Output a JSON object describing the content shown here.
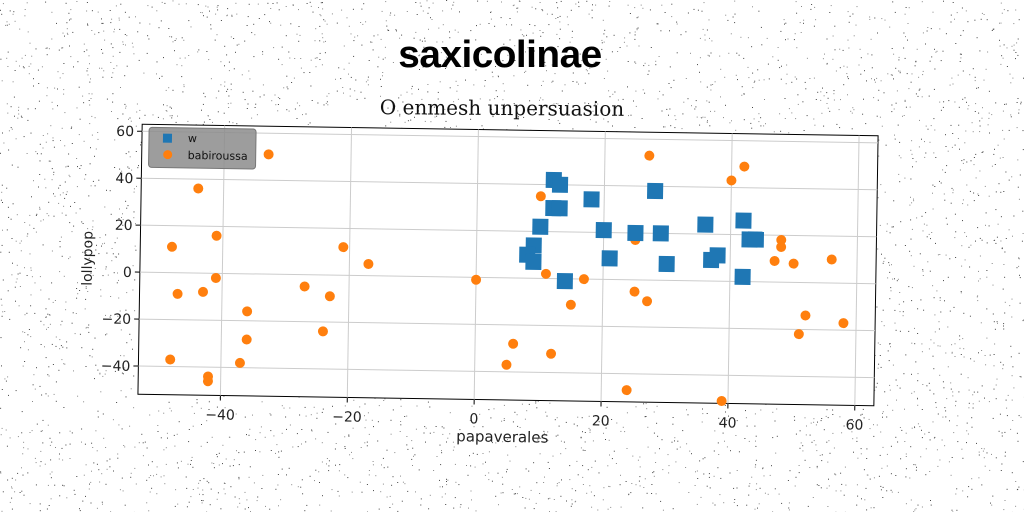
{
  "chart_data": {
    "type": "scatter",
    "title": "saxicolinae",
    "subtitle": "O enmesh unpersuasion",
    "xlabel": "papaverales",
    "ylabel": "lollypop",
    "xlim": [
      -53,
      63
    ],
    "ylim": [
      -52,
      63
    ],
    "xticks": [
      -40,
      -20,
      0,
      20,
      40,
      60
    ],
    "yticks": [
      -40,
      -20,
      0,
      20,
      40,
      60
    ],
    "grid": true,
    "legend_position": "top-left",
    "series": [
      {
        "name": "w",
        "marker": "square",
        "color": "#1f77b4",
        "points": [
          [
            12,
            42
          ],
          [
            13,
            40
          ],
          [
            12,
            30
          ],
          [
            13,
            30
          ],
          [
            10,
            22
          ],
          [
            9,
            14
          ],
          [
            8,
            10
          ],
          [
            9,
            7
          ],
          [
            14,
            -1
          ],
          [
            18,
            34
          ],
          [
            20,
            21
          ],
          [
            21,
            9
          ],
          [
            25,
            20
          ],
          [
            28,
            38
          ],
          [
            29,
            20
          ],
          [
            30,
            7
          ],
          [
            36,
            24
          ],
          [
            37,
            9
          ],
          [
            38,
            11
          ],
          [
            42,
            26
          ],
          [
            43,
            18
          ],
          [
            44,
            18
          ],
          [
            42,
            2
          ]
        ]
      },
      {
        "name": "babiroussa",
        "marker": "circle",
        "color": "#ff7f0e",
        "points": [
          [
            -48,
            11
          ],
          [
            -47,
            -9
          ],
          [
            -44,
            36
          ],
          [
            -43,
            -8
          ],
          [
            -41,
            16
          ],
          [
            -41,
            -2
          ],
          [
            -42,
            -44
          ],
          [
            -42,
            -46
          ],
          [
            -36,
            -16
          ],
          [
            -36,
            -28
          ],
          [
            -37,
            -38
          ],
          [
            -33,
            51
          ],
          [
            -27,
            -5
          ],
          [
            -24,
            -24
          ],
          [
            -23,
            -9
          ],
          [
            -21,
            12
          ],
          [
            -17,
            5
          ],
          [
            -48,
            -37
          ],
          [
            0,
            -1
          ],
          [
            5,
            -37
          ],
          [
            6,
            -28
          ],
          [
            10,
            35
          ],
          [
            11,
            2
          ],
          [
            12,
            -32
          ],
          [
            12,
            41
          ],
          [
            15,
            -11
          ],
          [
            17,
            0
          ],
          [
            24,
            -47
          ],
          [
            25,
            17
          ],
          [
            25,
            -5
          ],
          [
            27,
            53
          ],
          [
            27,
            -9
          ],
          [
            40,
            43
          ],
          [
            42,
            49
          ],
          [
            39,
            -51
          ],
          [
            47,
            9
          ],
          [
            48,
            18
          ],
          [
            48,
            15
          ],
          [
            50,
            8
          ],
          [
            51,
            -22
          ],
          [
            52,
            -14
          ],
          [
            56,
            10
          ],
          [
            58,
            -17
          ]
        ]
      }
    ]
  }
}
